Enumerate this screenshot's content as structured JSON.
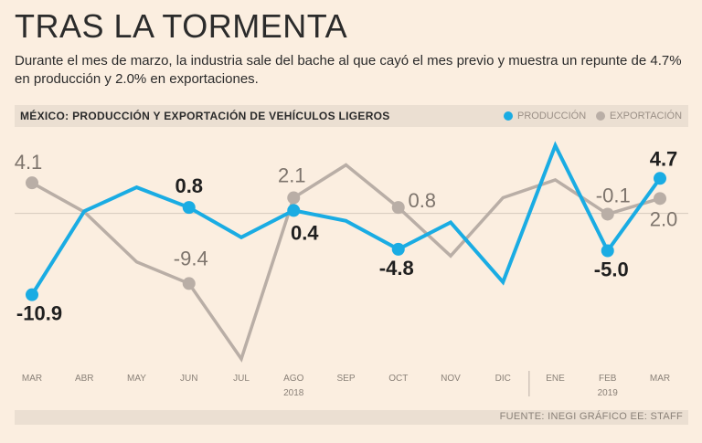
{
  "title": "TRAS LA TORMENTA",
  "subtitle": "Durante el mes de marzo, la industria sale del bache al que cayó el mes previo y muestra un repunte de 4.7% en producción y 2.0% en exportaciones.",
  "header": {
    "label": "MÉXICO: PRODUCCIÓN Y EXPORTACIÓN DE VEHÍCULOS LIGEROS",
    "legend": [
      {
        "label": "PRODUCCIÓN",
        "color": "#1aace3"
      },
      {
        "label": "EXPORTACIÓN",
        "color": "#b9aea6"
      }
    ]
  },
  "footer": {
    "source": "FUENTE: INEGI GRÁFICO EE: STAFF"
  },
  "chart_data": {
    "type": "line",
    "categories": [
      "MAR",
      "ABR",
      "MAY",
      "JUN",
      "JUL",
      "AGO",
      "SEP",
      "OCT",
      "NOV",
      "DIC",
      "ENE",
      "FEB",
      "MAR"
    ],
    "year_labels": [
      {
        "label": "2018",
        "index": 5
      },
      {
        "label": "2019",
        "index": 11
      }
    ],
    "ylim": [
      -20,
      10
    ],
    "series": [
      {
        "name": "PRODUCCIÓN",
        "color": "#1aace3",
        "values": [
          -10.9,
          0.3,
          3.5,
          0.8,
          -3.2,
          0.4,
          -1.0,
          -4.8,
          -1.2,
          -9.2,
          9.1,
          -5.0,
          4.7
        ],
        "labels": [
          {
            "index": 0,
            "text": "-10.9"
          },
          {
            "index": 3,
            "text": "0.8"
          },
          {
            "index": 5,
            "text": "0.4"
          },
          {
            "index": 7,
            "text": "-4.8"
          },
          {
            "index": 11,
            "text": "-5.0"
          },
          {
            "index": 12,
            "text": "4.7"
          }
        ]
      },
      {
        "name": "EXPORTACIÓN",
        "color": "#b9aea6",
        "values": [
          4.1,
          0.2,
          -6.5,
          -9.4,
          -19.5,
          2.1,
          6.5,
          0.8,
          -5.7,
          2.1,
          4.5,
          -0.1,
          2.0
        ],
        "labels": [
          {
            "index": 0,
            "text": "4.1"
          },
          {
            "index": 3,
            "text": "-9.4"
          },
          {
            "index": 5,
            "text": "2.1"
          },
          {
            "index": 7,
            "text": "0.8"
          },
          {
            "index": 11,
            "text": "-0.1"
          },
          {
            "index": 12,
            "text": "2.0"
          }
        ]
      }
    ]
  }
}
